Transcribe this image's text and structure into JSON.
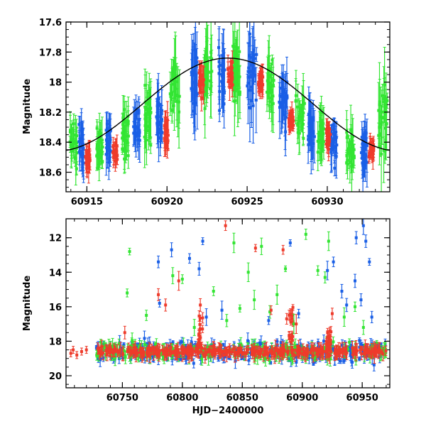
{
  "chart_data": [
    {
      "type": "scatter",
      "name": "zoomed-light-curve",
      "xlabel": "",
      "ylabel": "Magnitude",
      "xlim": [
        60913.7,
        60933.9
      ],
      "ylim": [
        18.73,
        17.6
      ],
      "y_inverted": true,
      "xticks": [
        60915,
        60920,
        60925,
        60930
      ],
      "xtick_labels": [
        "60915",
        "60920",
        "60925",
        "60930"
      ],
      "yticks": [
        17.6,
        17.8,
        18.0,
        18.2,
        18.4,
        18.6
      ],
      "ytick_labels": [
        "17.6",
        "17.8",
        "18",
        "18.2",
        "18.4",
        "18.6"
      ],
      "model_curve": {
        "color": "#000000",
        "description": "sinusoid",
        "mean": 18.15,
        "amplitude": 0.31,
        "period_days": 21.5,
        "peak_x": 60923.8
      },
      "series": [
        {
          "name": "green",
          "color": "#33e533",
          "segments": [
            {
              "x": [
                60913.9,
                60914.4
              ],
              "mean": 18.42,
              "spread": 0.3
            },
            {
              "x": [
                60915.6,
                60916.0
              ],
              "mean": 18.45,
              "spread": 0.25
            },
            {
              "x": [
                60917.2,
                60917.6
              ],
              "mean": 18.35,
              "spread": 0.3
            },
            {
              "x": [
                60918.6,
                60919.0
              ],
              "mean": 18.2,
              "spread": 0.35
            },
            {
              "x": [
                60920.2,
                60920.8
              ],
              "mean": 18.05,
              "spread": 0.4
            },
            {
              "x": [
                60922.3,
                60922.8
              ],
              "mean": 17.95,
              "spread": 0.45
            },
            {
              "x": [
                60924.1,
                60924.6
              ],
              "mean": 17.9,
              "spread": 0.4
            },
            {
              "x": [
                60926.2,
                60926.7
              ],
              "mean": 18.0,
              "spread": 0.35
            },
            {
              "x": [
                60928.0,
                60928.6
              ],
              "mean": 18.25,
              "spread": 0.3
            },
            {
              "x": [
                60929.4,
                60929.8
              ],
              "mean": 18.35,
              "spread": 0.3
            },
            {
              "x": [
                60931.2,
                60931.7
              ],
              "mean": 18.45,
              "spread": 0.3
            },
            {
              "x": [
                60933.2,
                60933.8
              ],
              "mean": 18.2,
              "spread": 0.45
            }
          ]
        },
        {
          "name": "blue",
          "color": "#1a5fe6",
          "segments": [
            {
              "x": [
                60914.5,
                60914.8
              ],
              "mean": 18.45,
              "spread": 0.25
            },
            {
              "x": [
                60916.2,
                60916.5
              ],
              "mean": 18.4,
              "spread": 0.25
            },
            {
              "x": [
                60917.9,
                60918.3
              ],
              "mean": 18.3,
              "spread": 0.25
            },
            {
              "x": [
                60919.3,
                60919.7
              ],
              "mean": 18.25,
              "spread": 0.35
            },
            {
              "x": [
                60921.5,
                60921.9
              ],
              "mean": 18.0,
              "spread": 0.45
            },
            {
              "x": [
                60923.2,
                60923.6
              ],
              "mean": 17.95,
              "spread": 0.4
            },
            {
              "x": [
                60925.0,
                60925.6
              ],
              "mean": 17.95,
              "spread": 0.45
            },
            {
              "x": [
                60927.0,
                60927.5
              ],
              "mean": 18.1,
              "spread": 0.35
            },
            {
              "x": [
                60928.8,
                60929.2
              ],
              "mean": 18.3,
              "spread": 0.3
            },
            {
              "x": [
                60930.2,
                60930.6
              ],
              "mean": 18.4,
              "spread": 0.25
            },
            {
              "x": [
                60932.1,
                60932.5
              ],
              "mean": 18.45,
              "spread": 0.3
            }
          ]
        },
        {
          "name": "red",
          "color": "#ee3b2b",
          "segments": [
            {
              "x": [
                60914.9,
                60915.2
              ],
              "mean": 18.5,
              "spread": 0.15
            },
            {
              "x": [
                60916.6,
                60916.9
              ],
              "mean": 18.48,
              "spread": 0.12
            },
            {
              "x": [
                60919.8,
                60920.1
              ],
              "mean": 18.35,
              "spread": 0.2
            },
            {
              "x": [
                60922.0,
                60922.3
              ],
              "mean": 18.0,
              "spread": 0.2
            },
            {
              "x": [
                60923.8,
                60924.1
              ],
              "mean": 17.95,
              "spread": 0.15
            },
            {
              "x": [
                60925.7,
                60926.0
              ],
              "mean": 18.0,
              "spread": 0.15
            },
            {
              "x": [
                60927.6,
                60927.9
              ],
              "mean": 18.25,
              "spread": 0.12
            },
            {
              "x": [
                60929.9,
                60930.2
              ],
              "mean": 18.35,
              "spread": 0.15
            },
            {
              "x": [
                60932.6,
                60932.9
              ],
              "mean": 18.45,
              "spread": 0.12
            }
          ]
        }
      ]
    },
    {
      "type": "scatter",
      "name": "full-light-curve",
      "xlabel": "HJD−2400000",
      "ylabel": "Magnitude",
      "xlim": [
        60703,
        60973
      ],
      "ylim": [
        20.7,
        10.9
      ],
      "y_inverted": true,
      "xticks": [
        60750,
        60800,
        60850,
        60900,
        60950
      ],
      "xtick_labels": [
        "60750",
        "60800",
        "60850",
        "60900",
        "60950"
      ],
      "yticks": [
        12,
        14,
        16,
        18,
        20
      ],
      "ytick_labels": [
        "12",
        "14",
        "16",
        "18",
        "20"
      ],
      "baseline": {
        "x_start": 60728,
        "x_end": 60970,
        "mag": 18.6
      },
      "early_red_points": [
        {
          "x": 60707,
          "y": 18.7
        },
        {
          "x": 60709,
          "y": 18.5
        },
        {
          "x": 60712,
          "y": 18.8
        },
        {
          "x": 60716,
          "y": 18.6
        },
        {
          "x": 60720,
          "y": 18.5
        }
      ],
      "flares": [
        {
          "x": 60815,
          "peak": 16.5,
          "color": "#ee3b2b"
        },
        {
          "x": 60891,
          "peak": 16.0,
          "color": "#ee3b2b"
        },
        {
          "x": 60922,
          "peak": 17.3,
          "color": "#ee3b2b"
        }
      ],
      "outliers": {
        "green": [
          {
            "x": 60756,
            "y": 12.8
          },
          {
            "x": 60754,
            "y": 15.2
          },
          {
            "x": 60770,
            "y": 16.5
          },
          {
            "x": 60792,
            "y": 14.2
          },
          {
            "x": 60800,
            "y": 14.4
          },
          {
            "x": 60810,
            "y": 17.2
          },
          {
            "x": 60826,
            "y": 15.1
          },
          {
            "x": 60837,
            "y": 16.8
          },
          {
            "x": 60843,
            "y": 12.3
          },
          {
            "x": 60848,
            "y": 16.1
          },
          {
            "x": 60855,
            "y": 14.0
          },
          {
            "x": 60860,
            "y": 15.6
          },
          {
            "x": 60866,
            "y": 12.5
          },
          {
            "x": 60873,
            "y": 16.3
          },
          {
            "x": 60879,
            "y": 15.3
          },
          {
            "x": 60886,
            "y": 13.8
          },
          {
            "x": 60893,
            "y": 17.0
          },
          {
            "x": 60903,
            "y": 11.8
          },
          {
            "x": 60913,
            "y": 13.9
          },
          {
            "x": 60919,
            "y": 14.3
          },
          {
            "x": 60922,
            "y": 12.2
          },
          {
            "x": 60935,
            "y": 16.6
          },
          {
            "x": 60944,
            "y": 16.0
          },
          {
            "x": 60951,
            "y": 17.2
          }
        ],
        "blue": [
          {
            "x": 60780,
            "y": 13.4
          },
          {
            "x": 60781,
            "y": 15.8
          },
          {
            "x": 60791,
            "y": 12.7
          },
          {
            "x": 60806,
            "y": 13.2
          },
          {
            "x": 60814,
            "y": 13.8
          },
          {
            "x": 60817,
            "y": 12.2
          },
          {
            "x": 60820,
            "y": 16.6
          },
          {
            "x": 60833,
            "y": 16.2
          },
          {
            "x": 60872,
            "y": 16.8
          },
          {
            "x": 60890,
            "y": 12.3
          },
          {
            "x": 60897,
            "y": 16.4
          },
          {
            "x": 60921,
            "y": 13.9
          },
          {
            "x": 60926,
            "y": 13.4
          },
          {
            "x": 60933,
            "y": 15.1
          },
          {
            "x": 60937,
            "y": 15.9
          },
          {
            "x": 60944,
            "y": 14.5
          },
          {
            "x": 60949,
            "y": 15.6
          },
          {
            "x": 60951,
            "y": 11.3
          },
          {
            "x": 60953,
            "y": 12.2
          },
          {
            "x": 60956,
            "y": 13.4
          },
          {
            "x": 60958,
            "y": 16.6
          },
          {
            "x": 60945,
            "y": 12.0
          }
        ],
        "red": [
          {
            "x": 60752,
            "y": 17.5
          },
          {
            "x": 60780,
            "y": 15.3
          },
          {
            "x": 60786,
            "y": 15.9
          },
          {
            "x": 60797,
            "y": 14.5
          },
          {
            "x": 60815,
            "y": 15.9
          },
          {
            "x": 60836,
            "y": 11.3
          },
          {
            "x": 60861,
            "y": 12.6
          },
          {
            "x": 60874,
            "y": 16.2
          },
          {
            "x": 60884,
            "y": 12.7
          },
          {
            "x": 60887,
            "y": 16.7
          },
          {
            "x": 60895,
            "y": 17.0
          },
          {
            "x": 60925,
            "y": 16.4
          }
        ]
      },
      "series_colors": {
        "green": "#33e533",
        "blue": "#1a5fe6",
        "red": "#ee3b2b"
      }
    }
  ]
}
